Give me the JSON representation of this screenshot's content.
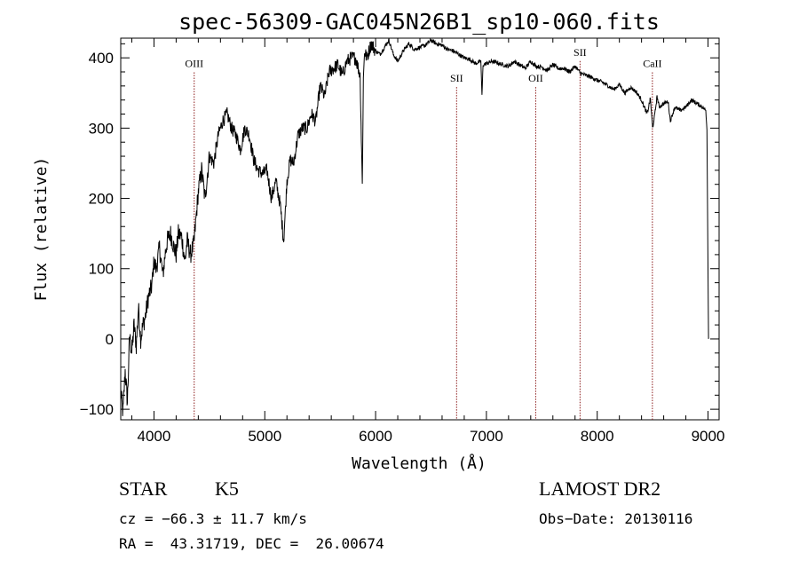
{
  "chart_data": {
    "type": "line",
    "title": "spec-56309-GAC045N26B1_sp10-060.fits",
    "xlabel": "Wavelength (Å)",
    "ylabel": "Flux (relative)",
    "xlim": [
      3700,
      9100
    ],
    "ylim": [
      -115,
      428
    ],
    "x_ticks": [
      4000,
      5000,
      6000,
      7000,
      8000,
      9000
    ],
    "y_ticks": [
      -100,
      0,
      100,
      200,
      300,
      400
    ],
    "grid": false,
    "series": [
      {
        "x": [
          3700,
          3720,
          3740,
          3760,
          3780,
          3800,
          3820,
          3840,
          3860,
          3880,
          3900,
          3920,
          3950,
          3980,
          4000,
          4020,
          4050,
          4080,
          4100,
          4120,
          4150,
          4180,
          4200,
          4220,
          4250,
          4280,
          4300,
          4330,
          4360,
          4400,
          4430,
          4460,
          4500,
          4540,
          4580,
          4620,
          4660,
          4700,
          4740,
          4780,
          4820,
          4860,
          4900,
          4940,
          4980,
          5020,
          5060,
          5100,
          5140,
          5170,
          5185,
          5200,
          5230,
          5260,
          5300,
          5340,
          5380,
          5420,
          5460,
          5500,
          5540,
          5580,
          5620,
          5660,
          5700,
          5740,
          5780,
          5820,
          5860,
          5880,
          5890,
          5900,
          5920,
          5960,
          6000,
          6040,
          6080,
          6120,
          6160,
          6200,
          6250,
          6300,
          6350,
          6400,
          6450,
          6500,
          6550,
          6600,
          6650,
          6700,
          6750,
          6800,
          6850,
          6900,
          6950,
          6960,
          6970,
          7000,
          7050,
          7100,
          7150,
          7200,
          7250,
          7300,
          7350,
          7400,
          7450,
          7500,
          7550,
          7600,
          7650,
          7700,
          7750,
          7800,
          7850,
          7900,
          7950,
          8000,
          8050,
          8100,
          8150,
          8200,
          8250,
          8300,
          8350,
          8400,
          8450,
          8480,
          8500,
          8520,
          8540,
          8560,
          8600,
          8640,
          8660,
          8700,
          8750,
          8800,
          8850,
          8900,
          8950,
          8980,
          8990,
          9000,
          9005
        ],
        "values": [
          -75,
          -105,
          -45,
          -90,
          5,
          -20,
          20,
          -10,
          45,
          0,
          20,
          30,
          60,
          75,
          110,
          100,
          130,
          90,
          120,
          140,
          150,
          130,
          120,
          150,
          145,
          110,
          140,
          120,
          135,
          210,
          240,
          200,
          260,
          250,
          290,
          310,
          320,
          300,
          290,
          270,
          300,
          290,
          255,
          240,
          235,
          240,
          200,
          225,
          190,
          140,
          180,
          225,
          255,
          250,
          290,
          300,
          300,
          320,
          310,
          360,
          345,
          380,
          385,
          390,
          375,
          395,
          400,
          400,
          375,
          220,
          370,
          410,
          400,
          420,
          410,
          405,
          415,
          425,
          405,
          395,
          410,
          420,
          412,
          415,
          418,
          425,
          420,
          418,
          412,
          410,
          405,
          400,
          398,
          392,
          395,
          345,
          390,
          392,
          395,
          393,
          390,
          388,
          395,
          390,
          385,
          395,
          388,
          387,
          382,
          390,
          385,
          385,
          380,
          388,
          378,
          375,
          372,
          368,
          365,
          360,
          355,
          362,
          350,
          358,
          352,
          340,
          320,
          342,
          300,
          320,
          345,
          330,
          335,
          338,
          310,
          330,
          325,
          330,
          340,
          335,
          330,
          325,
          300,
          100,
          0
        ]
      }
    ],
    "emission_lines": [
      {
        "label": "OIII",
        "x": 4363,
        "label_y": 387
      },
      {
        "label": "SII",
        "x": 6731,
        "label_y": 366
      },
      {
        "label": "OII",
        "x": 7445,
        "label_y": 366
      },
      {
        "label": "SII",
        "x": 7845,
        "label_y": 403
      },
      {
        "label": "CaII",
        "x": 8498,
        "label_y": 387
      }
    ]
  },
  "info": {
    "class": "STAR",
    "subclass": "K5",
    "survey": "LAMOST DR2",
    "cz": "cz = −66.3 ± 11.7 km/s",
    "obs_date": "Obs−Date: 20130116",
    "radec": "RA =  43.31719, DEC =  26.00674"
  }
}
